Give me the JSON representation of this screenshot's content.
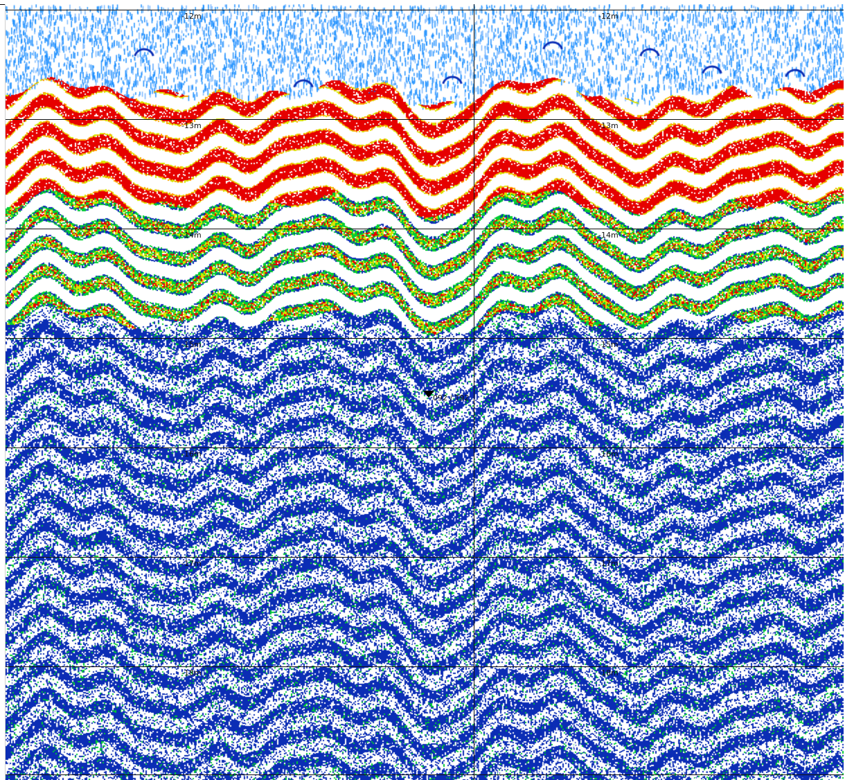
{
  "sonar_view": {
    "colors": {
      "background": "#ffffff",
      "grid": "#101010",
      "label": "#111111",
      "palette": [
        "#1e90ff",
        "#0b2db5",
        "#00cc33",
        "#d8e600",
        "#ffa000",
        "#e60000"
      ]
    },
    "left_pane": {
      "depth_labels": [
        "-12m",
        "-13m",
        "-14m",
        "-15m",
        "-16m",
        "-17m",
        "-18m"
      ]
    },
    "right_pane": {
      "depth_labels": [
        "-12m",
        "-13m",
        "-14m",
        "-15m",
        "-16m",
        "-17m",
        "-18m"
      ]
    },
    "target_marker": {
      "icon": "triangle-down-icon",
      "label": "092 / T92"
    }
  }
}
